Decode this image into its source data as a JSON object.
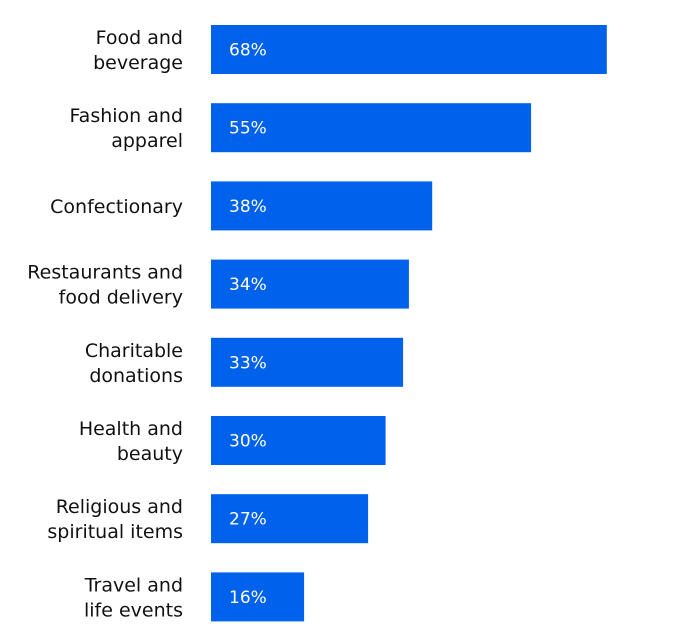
{
  "chart_data": {
    "type": "bar",
    "orientation": "horizontal",
    "categories": [
      [
        "Food and",
        "beverage"
      ],
      [
        "Fashion and",
        "apparel"
      ],
      [
        "Confectionary"
      ],
      [
        "Restaurants and",
        "food delivery"
      ],
      [
        "Charitable",
        "donations"
      ],
      [
        "Health and",
        "beauty"
      ],
      [
        "Religious and",
        "spiritual items"
      ],
      [
        "Travel and",
        "life events"
      ]
    ],
    "values": [
      68,
      55,
      38,
      34,
      33,
      30,
      27,
      16
    ],
    "value_labels": [
      "68%",
      "55%",
      "38%",
      "34%",
      "33%",
      "30%",
      "27%",
      "16%"
    ],
    "bar_color": "#0061EB",
    "value_label_color": "#ffffff",
    "grid": false,
    "legend": false
  }
}
